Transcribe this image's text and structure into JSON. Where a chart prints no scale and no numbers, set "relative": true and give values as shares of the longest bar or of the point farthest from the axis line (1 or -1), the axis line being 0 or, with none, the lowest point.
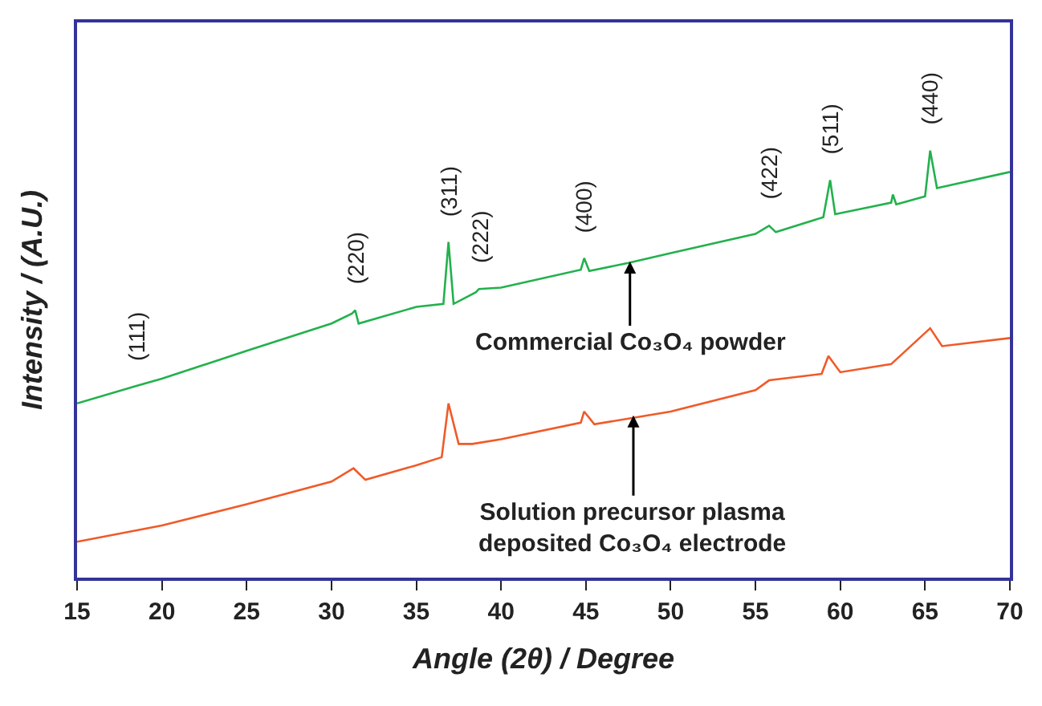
{
  "chart_data": {
    "type": "line",
    "relative": true,
    "xlabel": "Angle (2θ) / Degree",
    "ylabel": "Intensity / (A.U.)",
    "xlim": [
      15,
      70
    ],
    "xticks": [
      15,
      20,
      25,
      30,
      35,
      40,
      45,
      50,
      55,
      60,
      65,
      70
    ],
    "marker": "none",
    "line_style": "solid",
    "series": [
      {
        "color": "#22b14c",
        "x": [
          15,
          18.5,
          20,
          25,
          30,
          31.2,
          31.4,
          31.6,
          35,
          36.6,
          36.9,
          37.2,
          38.5,
          38.7,
          40,
          44.7,
          44.9,
          45.2,
          47.5,
          50,
          55,
          55.8,
          56.2,
          59,
          59.4,
          59.7,
          63,
          63.1,
          63.3,
          65,
          65.3,
          65.7,
          70
        ],
        "values": [
          0.408,
          0.449,
          0.466,
          0.531,
          0.595,
          0.618,
          0.626,
          0.595,
          0.634,
          0.641,
          0.786,
          0.641,
          0.668,
          0.676,
          0.679,
          0.721,
          0.748,
          0.718,
          0.737,
          0.76,
          0.805,
          0.824,
          0.809,
          0.844,
          0.931,
          0.851,
          0.878,
          0.897,
          0.874,
          0.893,
          1,
          0.912,
          0.95
        ]
      },
      {
        "color": "#f05a28",
        "x": [
          15,
          20,
          25,
          30,
          31.3,
          32,
          35,
          36.5,
          36.9,
          37.5,
          38.3,
          40,
          44.7,
          44.9,
          45.5,
          50,
          55,
          55.8,
          58.9,
          59.3,
          60,
          63,
          65.3,
          66,
          70
        ],
        "values": [
          0.084,
          0.122,
          0.172,
          0.225,
          0.256,
          0.229,
          0.263,
          0.282,
          0.408,
          0.313,
          0.313,
          0.324,
          0.363,
          0.389,
          0.359,
          0.389,
          0.439,
          0.462,
          0.477,
          0.519,
          0.481,
          0.5,
          0.584,
          0.542,
          0.561
        ]
      }
    ],
    "annotations": [
      {
        "text": "(111)",
        "x": 18.5,
        "y": 0.449
      },
      {
        "text": "(220)",
        "x": 31.4,
        "y": 0.626
      },
      {
        "text": "(311)",
        "x": 36.9,
        "y": 0.786
      },
      {
        "text": "(222)",
        "x": 38.7,
        "y": 0.676
      },
      {
        "text": "(400)",
        "x": 44.9,
        "y": 0.748
      },
      {
        "text": "(422)",
        "x": 55.8,
        "y": 0.824
      },
      {
        "text": "(511)",
        "x": 59.4,
        "y": 0.931
      },
      {
        "text": "(440)",
        "x": 65.3,
        "y": 1
      },
      {
        "text": "Commercial Co₃O₄ powder",
        "x": 47.6,
        "y": 0.74
      },
      {
        "text": "Solution precursor plasma\ndeposited Co₃O₄ electrode",
        "x": 47.8,
        "y": 0.38
      }
    ]
  }
}
